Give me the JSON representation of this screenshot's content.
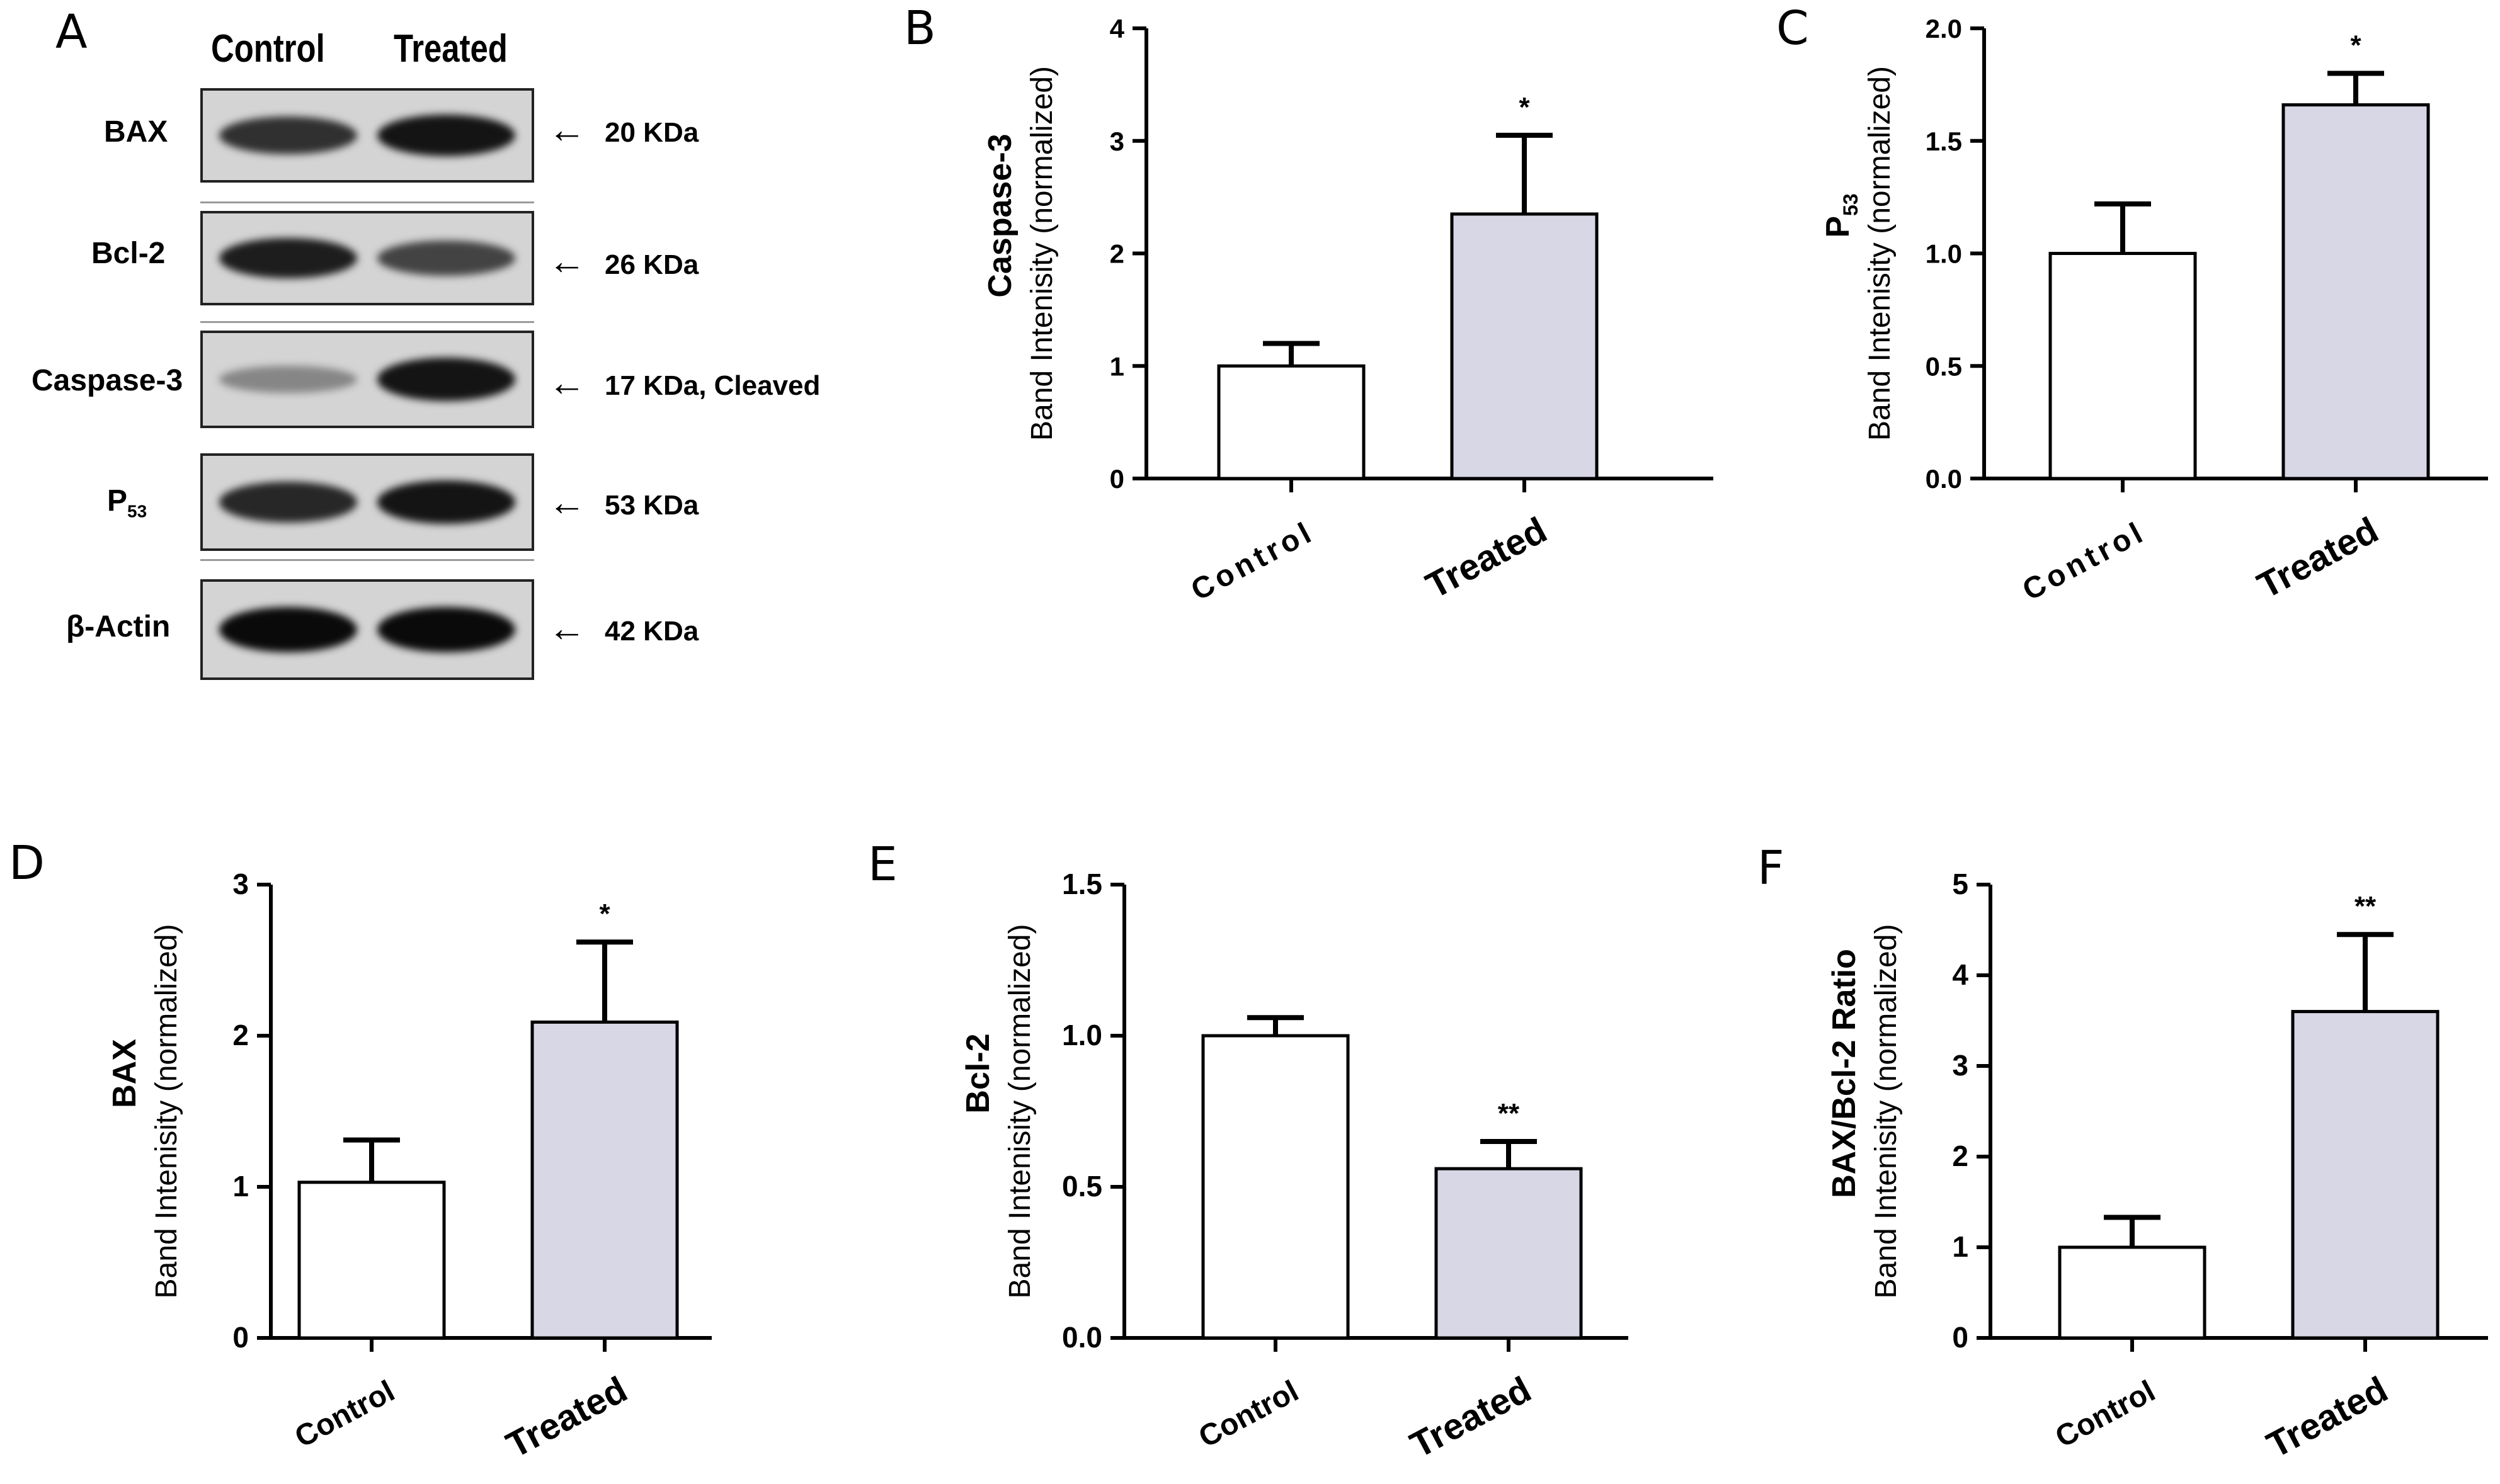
{
  "figure": {
    "panels": [
      {
        "letter": "A"
      },
      {
        "letter": "B"
      },
      {
        "letter": "C"
      },
      {
        "letter": "D"
      },
      {
        "letter": "E"
      },
      {
        "letter": "F"
      }
    ],
    "blot": {
      "columns": [
        "Control",
        "Treated"
      ],
      "rows": [
        {
          "label": "BAX",
          "kda": "20 KDa",
          "control_intensity": 0.8,
          "treated_intensity": 0.95
        },
        {
          "label": "Bcl-2",
          "kda": "26 KDa",
          "control_intensity": 0.9,
          "treated_intensity": 0.7
        },
        {
          "label": "Caspase-3",
          "kda": "17 KDa, Cleaved",
          "control_intensity": 0.35,
          "treated_intensity": 0.95
        },
        {
          "label": "P",
          "label_sub": "53",
          "kda": "53 KDa",
          "control_intensity": 0.85,
          "treated_intensity": 0.95
        },
        {
          "label": "β-Actin",
          "kda": "42 KDa",
          "control_intensity": 1.0,
          "treated_intensity": 1.0
        }
      ]
    }
  },
  "chart_data": [
    {
      "panel": "B",
      "type": "bar",
      "categories": [
        "Control",
        "Treated"
      ],
      "values": [
        1.0,
        2.35
      ],
      "errors": [
        0.2,
        0.7
      ],
      "significance": [
        "",
        "*"
      ],
      "ylim": [
        0,
        4
      ],
      "yticks": [
        "0",
        "1",
        "2",
        "3",
        "4"
      ],
      "ylabel": "Band Intenisity (normalized)",
      "ylabel_title": "Caspase-3",
      "ylabel_title_sub": "",
      "colors": [
        "#ffffff",
        "#d8d7e6"
      ]
    },
    {
      "panel": "C",
      "type": "bar",
      "categories": [
        "Control",
        "Treated"
      ],
      "values": [
        1.0,
        1.66
      ],
      "errors": [
        0.22,
        0.14
      ],
      "significance": [
        "",
        "*"
      ],
      "ylim": [
        0,
        2
      ],
      "yticks": [
        "0.0",
        "0.5",
        "1.0",
        "1.5",
        "2.0"
      ],
      "ylabel": "Band Intenisity (normalized)",
      "ylabel_title": "P",
      "ylabel_title_sub": "53",
      "colors": [
        "#ffffff",
        "#d8d7e6"
      ]
    },
    {
      "panel": "D",
      "type": "bar",
      "categories": [
        "Control",
        "Treated"
      ],
      "values": [
        1.03,
        2.09
      ],
      "errors": [
        0.28,
        0.53
      ],
      "significance": [
        "",
        "*"
      ],
      "ylim": [
        0,
        3
      ],
      "yticks": [
        "0",
        "1",
        "2",
        "3"
      ],
      "ylabel": "Band Intenisity (normalized)",
      "ylabel_title": "BAX",
      "ylabel_title_sub": "",
      "colors": [
        "#ffffff",
        "#d8d7e6"
      ]
    },
    {
      "panel": "E",
      "type": "bar",
      "categories": [
        "Control",
        "Treated"
      ],
      "values": [
        1.0,
        0.56
      ],
      "errors": [
        0.06,
        0.09
      ],
      "significance": [
        "",
        "**"
      ],
      "ylim": [
        0,
        1.5
      ],
      "yticks": [
        "0.0",
        "0.5",
        "1.0",
        "1.5"
      ],
      "ylabel": "Band Intenisity (normalized)",
      "ylabel_title": "Bcl-2",
      "ylabel_title_sub": "",
      "colors": [
        "#ffffff",
        "#d8d7e6"
      ]
    },
    {
      "panel": "F",
      "type": "bar",
      "categories": [
        "Control",
        "Treated"
      ],
      "values": [
        1.0,
        3.6
      ],
      "errors": [
        0.33,
        0.85
      ],
      "significance": [
        "",
        "**"
      ],
      "ylim": [
        0,
        5
      ],
      "yticks": [
        "0",
        "1",
        "2",
        "3",
        "4",
        "5"
      ],
      "ylabel": "Band Intenisity (normalized)",
      "ylabel_title": "BAX/Bcl-2 Ratio",
      "ylabel_title_sub": "",
      "colors": [
        "#ffffff",
        "#d8d7e6"
      ]
    }
  ]
}
